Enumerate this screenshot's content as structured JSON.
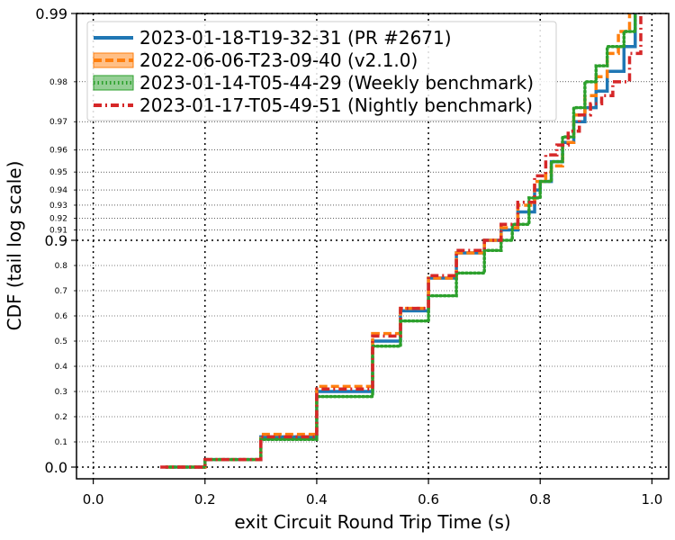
{
  "chart_data": {
    "type": "line",
    "title": "",
    "xlabel": "exit Circuit Round Trip Time (s)",
    "ylabel": "CDF (tail log scale)",
    "xlim": [
      -0.03,
      1.03
    ],
    "x_ticks": [
      "0.0",
      "0.2",
      "0.4",
      "0.6",
      "0.8",
      "1.0"
    ],
    "y_scale": "tail-log (linear to 0.9, logit tail above)",
    "y_ticks_major": [
      "0.0",
      "0.9",
      "0.99"
    ],
    "y_ticks_minor": [
      "0.1",
      "0.2",
      "0.3",
      "0.4",
      "0.5",
      "0.6",
      "0.7",
      "0.8",
      "0.91",
      "0.92",
      "0.93",
      "0.94",
      "0.95",
      "0.96",
      "0.97",
      "0.98"
    ],
    "grid": true,
    "legend_position": "top-left",
    "series": [
      {
        "name": "2023-01-18-T19-32-31 (PR #2671)",
        "color": "#1f77b4",
        "style": "solid",
        "x": [
          0.13,
          0.2,
          0.3,
          0.4,
          0.5,
          0.55,
          0.6,
          0.65,
          0.7,
          0.73,
          0.76,
          0.79,
          0.8,
          0.82,
          0.84,
          0.86,
          0.88,
          0.9,
          0.92,
          0.95,
          0.97
        ],
        "y": [
          0.0,
          0.03,
          0.12,
          0.3,
          0.5,
          0.62,
          0.75,
          0.85,
          0.9,
          0.91,
          0.925,
          0.94,
          0.945,
          0.955,
          0.963,
          0.97,
          0.974,
          0.978,
          0.982,
          0.986,
          0.99
        ]
      },
      {
        "name": "2022-06-06-T23-09-40 (v2.1.0)",
        "color": "#ff7f0e",
        "style": "dashed",
        "x": [
          0.13,
          0.2,
          0.3,
          0.4,
          0.5,
          0.55,
          0.6,
          0.65,
          0.7,
          0.73,
          0.76,
          0.79,
          0.81,
          0.82,
          0.84,
          0.86,
          0.88,
          0.9,
          0.92,
          0.94,
          0.96
        ],
        "y": [
          0.0,
          0.03,
          0.13,
          0.32,
          0.53,
          0.63,
          0.75,
          0.85,
          0.9,
          0.912,
          0.93,
          0.945,
          0.95,
          0.953,
          0.963,
          0.972,
          0.977,
          0.981,
          0.985,
          0.988,
          0.99
        ]
      },
      {
        "name": "2023-01-14-T05-44-29 (Weekly benchmark)",
        "color": "#2ca02c",
        "style": "dotted",
        "x": [
          0.13,
          0.2,
          0.3,
          0.4,
          0.5,
          0.55,
          0.6,
          0.65,
          0.7,
          0.73,
          0.75,
          0.78,
          0.8,
          0.82,
          0.84,
          0.86,
          0.88,
          0.9,
          0.92,
          0.95,
          0.97
        ],
        "y": [
          0.0,
          0.03,
          0.11,
          0.28,
          0.48,
          0.58,
          0.68,
          0.77,
          0.86,
          0.9,
          0.915,
          0.935,
          0.945,
          0.955,
          0.965,
          0.974,
          0.98,
          0.983,
          0.986,
          0.988,
          0.99
        ]
      },
      {
        "name": "2023-01-17-T05-49-51 (Nightly benchmark)",
        "color": "#d62728",
        "style": "dashdot",
        "x": [
          0.12,
          0.2,
          0.3,
          0.4,
          0.5,
          0.55,
          0.6,
          0.65,
          0.7,
          0.73,
          0.76,
          0.79,
          0.81,
          0.83,
          0.85,
          0.87,
          0.89,
          0.91,
          0.93,
          0.96,
          0.98
        ],
        "y": [
          0.0,
          0.03,
          0.12,
          0.31,
          0.52,
          0.63,
          0.76,
          0.86,
          0.9,
          0.915,
          0.932,
          0.948,
          0.958,
          0.962,
          0.967,
          0.972,
          0.975,
          0.977,
          0.98,
          0.985,
          0.99
        ]
      }
    ]
  }
}
